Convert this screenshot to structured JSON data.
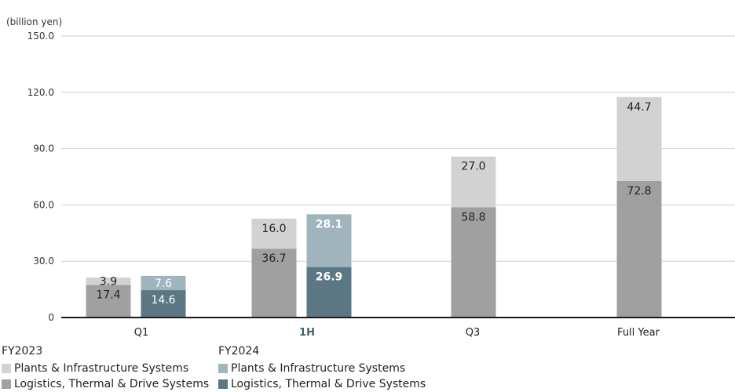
{
  "chart_data": {
    "type": "bar",
    "unit_label": "(billion yen)",
    "categories": [
      "Q1",
      "1H",
      "Q3",
      "Full Year"
    ],
    "highlight_category": "1H",
    "ylim": [
      0,
      150
    ],
    "yticks": [
      "0",
      "30.0",
      "60.0",
      "90.0",
      "120.0",
      "150.0"
    ],
    "grid": true,
    "groups": [
      {
        "name": "FY2023",
        "series": [
          {
            "name": "Logistics, Thermal & Drive Systems",
            "color": "#a0a0a0",
            "values": [
              17.4,
              36.7,
              58.8,
              72.8
            ],
            "labels": [
              "17.4",
              "36.7",
              "58.8",
              "72.8"
            ]
          },
          {
            "name": "Plants & Infrastructure Systems",
            "color": "#d2d2d2",
            "values": [
              3.9,
              16.0,
              27.0,
              44.7
            ],
            "labels": [
              "3.9",
              "16.0",
              "27.0",
              "44.7"
            ]
          }
        ]
      },
      {
        "name": "FY2024",
        "series": [
          {
            "name": "Logistics, Thermal & Drive Systems",
            "color": "#5b7783",
            "values": [
              14.6,
              26.9,
              null,
              null
            ],
            "labels": [
              "14.6",
              "26.9",
              "",
              ""
            ]
          },
          {
            "name": "Plants & Infrastructure Systems",
            "color": "#9fb4bc",
            "values": [
              7.6,
              28.1,
              null,
              null
            ],
            "labels": [
              "7.6",
              "28.1",
              "",
              ""
            ]
          }
        ]
      }
    ],
    "legend": {
      "placement": "bottom",
      "groups": [
        {
          "title": "FY2023",
          "items": [
            {
              "label": "Plants & Infrastructure Systems",
              "color": "#d2d2d2"
            },
            {
              "label": "Logistics, Thermal & Drive Systems",
              "color": "#a0a0a0"
            }
          ]
        },
        {
          "title": "FY2024",
          "items": [
            {
              "label": "Plants & Infrastructure Systems",
              "color": "#9fb4bc"
            },
            {
              "label": "Logistics, Thermal & Drive Systems",
              "color": "#5b7783"
            }
          ]
        }
      ]
    }
  }
}
